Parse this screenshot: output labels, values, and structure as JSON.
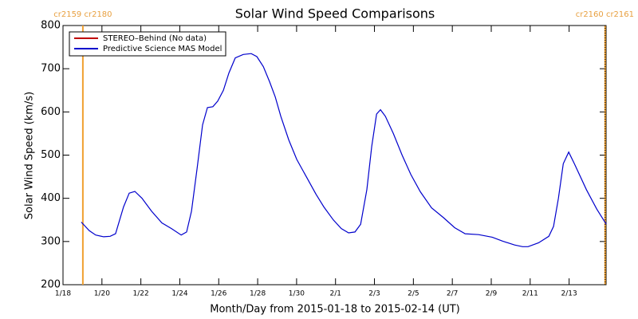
{
  "chart_data": {
    "type": "line",
    "title": "Solar Wind Speed Comparisons",
    "xlabel": "Month/Day from 2015-01-18 to 2015-02-14 (UT)",
    "ylabel": "Solar Wind Speed (km/s)",
    "xlim": [
      0,
      27.9
    ],
    "xticks": [
      {
        "value": 0,
        "label": "1/18"
      },
      {
        "value": 2,
        "label": "1/20"
      },
      {
        "value": 4,
        "label": "1/22"
      },
      {
        "value": 6,
        "label": "1/24"
      },
      {
        "value": 8,
        "label": "1/26"
      },
      {
        "value": 10,
        "label": "1/28"
      },
      {
        "value": 12,
        "label": "1/30"
      },
      {
        "value": 14,
        "label": "2/1"
      },
      {
        "value": 16,
        "label": "2/3"
      },
      {
        "value": 18,
        "label": "2/5"
      },
      {
        "value": 20,
        "label": "2/7"
      },
      {
        "value": 22,
        "label": "2/9"
      },
      {
        "value": 24,
        "label": "2/11"
      },
      {
        "value": 26,
        "label": "2/13"
      }
    ],
    "ylim": [
      200,
      800
    ],
    "yticks": [
      200,
      300,
      400,
      500,
      600,
      700,
      800
    ],
    "legend": "top-left",
    "series": [
      {
        "name": "STEREO–Behind (No data)",
        "color": "#c00000",
        "x": [],
        "values": []
      },
      {
        "name": "Predictive Science MAS Model",
        "color": "#0000cc",
        "x": [
          0.94,
          1.35,
          1.68,
          2.09,
          2.42,
          2.7,
          3.11,
          3.4,
          3.69,
          4.06,
          4.55,
          5.08,
          5.57,
          6.07,
          6.35,
          6.6,
          6.89,
          7.17,
          7.42,
          7.7,
          7.95,
          8.24,
          8.52,
          8.85,
          9.26,
          9.67,
          9.96,
          10.29,
          10.61,
          10.9,
          11.19,
          11.6,
          12.01,
          12.5,
          12.99,
          13.4,
          13.89,
          14.3,
          14.67,
          15.0,
          15.29,
          15.61,
          15.86,
          16.11,
          16.31,
          16.56,
          16.97,
          17.42,
          17.87,
          18.36,
          18.93,
          19.55,
          20.12,
          20.66,
          21.35,
          22.05,
          22.58,
          23.2,
          23.61,
          23.89,
          24.43,
          24.96,
          25.2,
          25.45,
          25.7,
          25.98,
          26.27,
          26.89,
          27.42,
          27.91
        ],
        "values": [
          345,
          325,
          315,
          311,
          312,
          318,
          380,
          412,
          416,
          400,
          370,
          343,
          330,
          315,
          322,
          370,
          470,
          570,
          610,
          612,
          625,
          650,
          690,
          725,
          733,
          735,
          728,
          705,
          670,
          635,
          590,
          535,
          490,
          450,
          410,
          380,
          350,
          330,
          320,
          322,
          340,
          420,
          520,
          595,
          605,
          590,
          550,
          500,
          455,
          415,
          378,
          355,
          332,
          318,
          316,
          310,
          301,
          292,
          288,
          288,
          297,
          312,
          335,
          400,
          480,
          507,
          480,
          420,
          375,
          340
        ]
      }
    ],
    "markers": [
      {
        "x": 1.02,
        "label": "cr2159 cr2180",
        "color": "#f0a030",
        "dotted_overlay": false
      },
      {
        "x": 27.85,
        "label": "cr2160 cr2161",
        "color": "#f0a030",
        "dotted_overlay": true
      }
    ]
  }
}
